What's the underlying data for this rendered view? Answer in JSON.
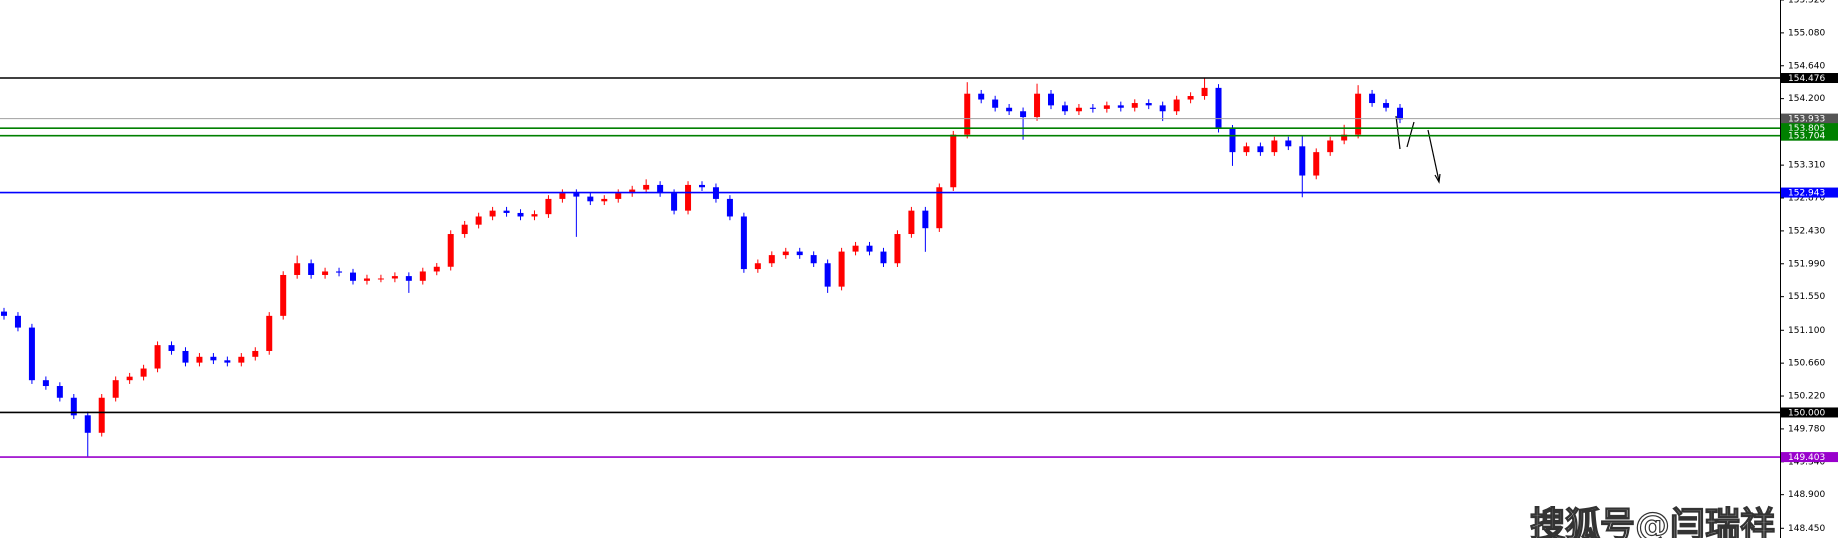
{
  "chart_data": {
    "type": "candlestick",
    "watermark": "搜狐号@闫瑞祥",
    "ylim": [
      148.32,
      155.52
    ],
    "yticks": [
      {
        "value": 155.52,
        "label": "155.520"
      },
      {
        "value": 155.08,
        "label": "155.080"
      },
      {
        "value": 154.64,
        "label": "154.640"
      },
      {
        "value": 154.2,
        "label": "154.200"
      },
      {
        "value": 153.31,
        "label": "153.310"
      },
      {
        "value": 152.87,
        "label": "152.870"
      },
      {
        "value": 152.43,
        "label": "152.430"
      },
      {
        "value": 151.99,
        "label": "151.990"
      },
      {
        "value": 151.55,
        "label": "151.550"
      },
      {
        "value": 151.1,
        "label": "151.100"
      },
      {
        "value": 150.66,
        "label": "150.660"
      },
      {
        "value": 150.22,
        "label": "150.220"
      },
      {
        "value": 149.78,
        "label": "149.780"
      },
      {
        "value": 149.34,
        "label": "149.340"
      },
      {
        "value": 148.9,
        "label": "148.900"
      },
      {
        "value": 148.45,
        "label": "148.450"
      }
    ],
    "up_color": "#ff0000",
    "down_color": "#0000ff",
    "levels": [
      {
        "value": 154.476,
        "label": "154.476",
        "color": "#000000"
      },
      {
        "value": 153.933,
        "label": "153.933",
        "color": "#a0a0a0"
      },
      {
        "value": 153.805,
        "label": "153.805",
        "color": "#008000"
      },
      {
        "value": 153.704,
        "label": "153.704",
        "color": "#008000"
      },
      {
        "value": 152.943,
        "label": "152.943",
        "color": "#0000ff"
      },
      {
        "value": 150.0,
        "label": "150.000",
        "color": "#000000"
      },
      {
        "value": 149.403,
        "label": "149.403",
        "color": "#9900cc"
      }
    ],
    "ohlc": [
      [
        151.35,
        151.4,
        151.243,
        151.293
      ],
      [
        151.293,
        151.343,
        151.086,
        151.136
      ],
      [
        151.136,
        151.186,
        150.382,
        150.432
      ],
      [
        150.432,
        150.482,
        150.304,
        150.354
      ],
      [
        150.354,
        150.404,
        150.147,
        150.197
      ],
      [
        150.197,
        150.247,
        149.912,
        149.962
      ],
      [
        149.962,
        150.012,
        149.4,
        149.728
      ],
      [
        149.728,
        150.247,
        149.678,
        150.197
      ],
      [
        150.197,
        150.482,
        150.147,
        150.432
      ],
      [
        150.432,
        150.529,
        150.382,
        150.479
      ],
      [
        150.479,
        150.638,
        150.429,
        150.588
      ],
      [
        150.588,
        150.951,
        150.538,
        150.901
      ],
      [
        150.901,
        150.951,
        150.773,
        150.823
      ],
      [
        150.823,
        150.873,
        150.617,
        150.667
      ],
      [
        150.667,
        150.795,
        150.617,
        150.745
      ],
      [
        150.745,
        150.795,
        150.648,
        150.698
      ],
      [
        150.698,
        150.748,
        150.617,
        150.667
      ],
      [
        150.667,
        150.795,
        150.617,
        150.745
      ],
      [
        150.745,
        150.873,
        150.695,
        150.823
      ],
      [
        150.823,
        151.343,
        150.773,
        151.293
      ],
      [
        151.293,
        151.89,
        151.243,
        151.84
      ],
      [
        151.84,
        152.1,
        151.79,
        151.997
      ],
      [
        151.997,
        152.047,
        151.79,
        151.84
      ],
      [
        151.84,
        151.937,
        151.79,
        151.887
      ],
      [
        151.887,
        151.937,
        151.822,
        151.872
      ],
      [
        151.872,
        151.922,
        151.712,
        151.762
      ],
      [
        151.762,
        151.843,
        151.712,
        151.793
      ],
      [
        151.793,
        151.843,
        151.743,
        151.793
      ],
      [
        151.793,
        151.875,
        151.743,
        151.825
      ],
      [
        151.825,
        151.875,
        151.6,
        151.762
      ],
      [
        151.762,
        151.937,
        151.712,
        151.887
      ],
      [
        151.887,
        152.0,
        151.837,
        151.95
      ],
      [
        151.95,
        152.438,
        151.9,
        152.388
      ],
      [
        152.388,
        152.563,
        152.338,
        152.513
      ],
      [
        152.513,
        152.673,
        152.463,
        152.623
      ],
      [
        152.623,
        152.751,
        152.573,
        152.701
      ],
      [
        152.701,
        152.751,
        152.62,
        152.67
      ],
      [
        152.67,
        152.72,
        152.573,
        152.623
      ],
      [
        152.623,
        152.704,
        152.573,
        152.654
      ],
      [
        152.654,
        152.908,
        152.604,
        152.858
      ],
      [
        152.858,
        152.986,
        152.808,
        152.936
      ],
      [
        152.936,
        152.986,
        152.35,
        152.889
      ],
      [
        152.889,
        152.939,
        152.776,
        152.826
      ],
      [
        152.826,
        152.908,
        152.776,
        152.858
      ],
      [
        152.858,
        152.986,
        152.808,
        152.936
      ],
      [
        152.936,
        153.033,
        152.886,
        152.983
      ],
      [
        152.983,
        153.12,
        152.933,
        153.045
      ],
      [
        153.045,
        153.095,
        152.886,
        152.936
      ],
      [
        152.936,
        152.986,
        152.651,
        152.701
      ],
      [
        152.701,
        153.095,
        152.651,
        153.045
      ],
      [
        153.045,
        153.095,
        152.964,
        153.014
      ],
      [
        153.014,
        153.064,
        152.808,
        152.858
      ],
      [
        152.858,
        152.908,
        152.573,
        152.623
      ],
      [
        152.623,
        152.673,
        151.869,
        151.919
      ],
      [
        151.919,
        152.047,
        151.869,
        151.997
      ],
      [
        151.997,
        152.156,
        151.947,
        152.106
      ],
      [
        152.106,
        152.203,
        152.056,
        152.153
      ],
      [
        152.153,
        152.203,
        152.056,
        152.106
      ],
      [
        152.106,
        152.156,
        151.947,
        151.997
      ],
      [
        151.997,
        152.047,
        151.6,
        151.684
      ],
      [
        151.684,
        152.203,
        151.634,
        152.153
      ],
      [
        152.153,
        152.282,
        152.103,
        152.232
      ],
      [
        152.232,
        152.282,
        152.103,
        152.153
      ],
      [
        152.153,
        152.203,
        151.947,
        151.997
      ],
      [
        151.997,
        152.438,
        151.947,
        152.388
      ],
      [
        152.388,
        152.751,
        152.338,
        152.701
      ],
      [
        152.701,
        152.751,
        152.15,
        152.466
      ],
      [
        152.466,
        153.064,
        152.416,
        153.014
      ],
      [
        153.014,
        153.768,
        152.964,
        153.718
      ],
      [
        153.718,
        154.42,
        153.668,
        154.266
      ],
      [
        154.266,
        154.316,
        154.138,
        154.188
      ],
      [
        154.188,
        154.238,
        154.028,
        154.078
      ],
      [
        154.078,
        154.128,
        153.981,
        154.031
      ],
      [
        154.031,
        154.081,
        153.65,
        153.953
      ],
      [
        153.953,
        154.4,
        153.903,
        154.266
      ],
      [
        154.266,
        154.316,
        154.06,
        154.11
      ],
      [
        154.11,
        154.16,
        153.981,
        154.031
      ],
      [
        154.031,
        154.128,
        153.981,
        154.078
      ],
      [
        154.078,
        154.128,
        154.013,
        154.063
      ],
      [
        154.063,
        154.16,
        154.013,
        154.11
      ],
      [
        154.11,
        154.16,
        154.028,
        154.078
      ],
      [
        154.078,
        154.191,
        154.028,
        154.141
      ],
      [
        154.141,
        154.191,
        154.06,
        154.11
      ],
      [
        154.11,
        154.16,
        153.9,
        154.031
      ],
      [
        154.031,
        154.238,
        153.981,
        154.188
      ],
      [
        154.188,
        154.285,
        154.138,
        154.235
      ],
      [
        154.235,
        154.48,
        154.185,
        154.344
      ],
      [
        154.344,
        154.394,
        153.747,
        153.797
      ],
      [
        153.797,
        153.847,
        153.3,
        153.484
      ],
      [
        153.484,
        153.612,
        153.434,
        153.562
      ],
      [
        153.562,
        153.612,
        153.434,
        153.484
      ],
      [
        153.484,
        153.69,
        153.434,
        153.64
      ],
      [
        153.64,
        153.69,
        153.512,
        153.562
      ],
      [
        153.562,
        153.7,
        152.88,
        153.171
      ],
      [
        153.171,
        153.534,
        153.121,
        153.484
      ],
      [
        153.484,
        153.69,
        153.434,
        153.64
      ],
      [
        153.64,
        153.85,
        153.59,
        153.718
      ],
      [
        153.718,
        154.38,
        153.668,
        154.266
      ],
      [
        154.266,
        154.316,
        154.091,
        154.141
      ],
      [
        154.141,
        154.191,
        154.028,
        154.078
      ],
      [
        154.078,
        154.128,
        153.872,
        153.922
      ]
    ]
  }
}
